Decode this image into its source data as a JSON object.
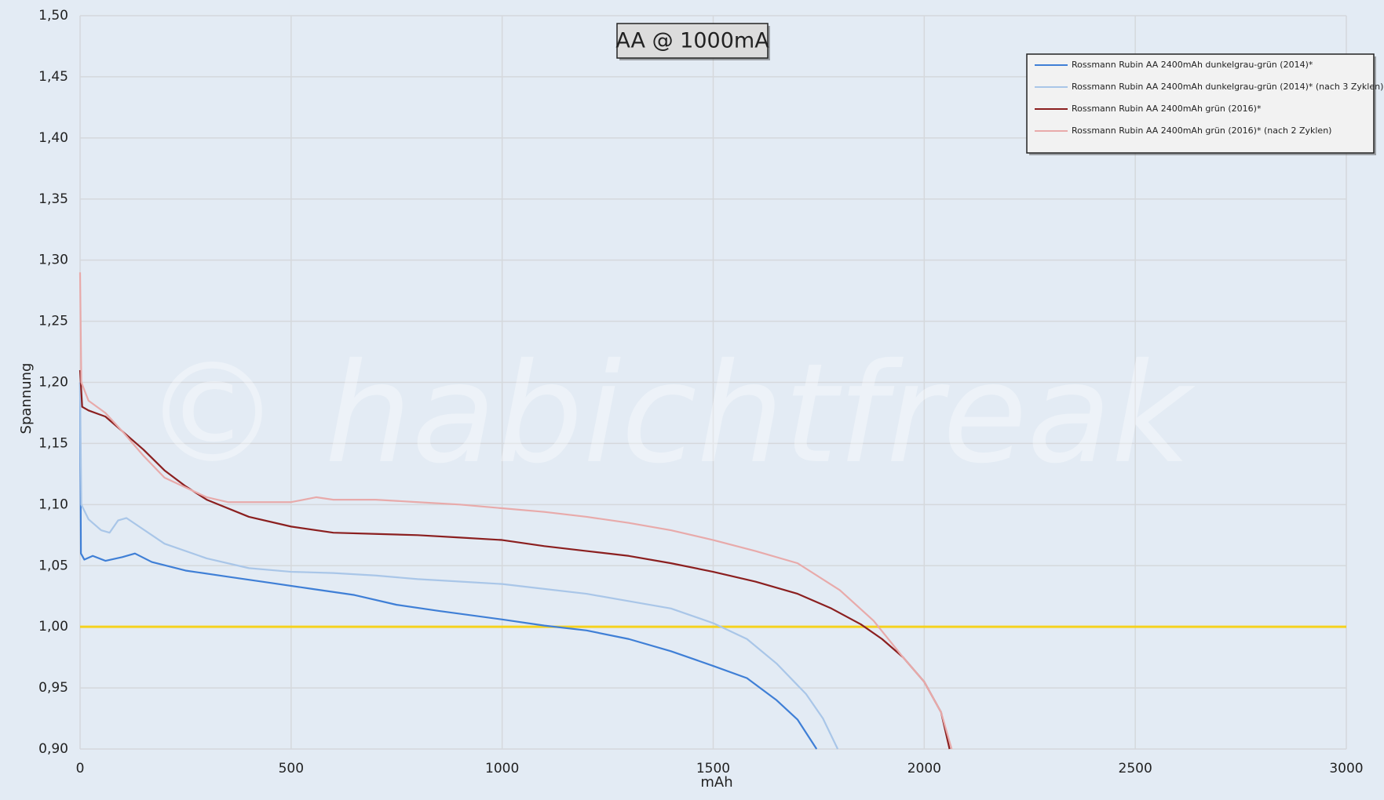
{
  "chart_data": {
    "type": "line",
    "title": "AA @ 1000mA",
    "xlabel": "mAh",
    "ylabel": "Spannung",
    "watermark": "© habichtfreak",
    "xlim": [
      0,
      3000
    ],
    "xticks": [
      0,
      500,
      1000,
      1500,
      2000,
      2500,
      3000
    ],
    "ylim": [
      0.9,
      1.5
    ],
    "yticks": [
      {
        "value": 0.9,
        "label": "0,90"
      },
      {
        "value": 0.95,
        "label": "0,95"
      },
      {
        "value": 1.0,
        "label": "1,00"
      },
      {
        "value": 1.05,
        "label": "1,05"
      },
      {
        "value": 1.1,
        "label": "1,10"
      },
      {
        "value": 1.15,
        "label": "1,15"
      },
      {
        "value": 1.2,
        "label": "1,20"
      },
      {
        "value": 1.25,
        "label": "1,25"
      },
      {
        "value": 1.3,
        "label": "1,30"
      },
      {
        "value": 1.35,
        "label": "1,35"
      },
      {
        "value": 1.4,
        "label": "1,40"
      },
      {
        "value": 1.45,
        "label": "1,45"
      },
      {
        "value": 1.5,
        "label": "1,50"
      }
    ],
    "grid": true,
    "legend": "upper right",
    "reference_line": {
      "value": 1.0,
      "color": "#f5d21e"
    },
    "series": [
      {
        "name": "Rossmann Rubin AA 2400mAh dunkelgrau-grün (2014)*",
        "color": "#3f7fd6",
        "x": [
          0,
          2,
          10,
          30,
          60,
          100,
          130,
          170,
          250,
          350,
          450,
          550,
          650,
          750,
          850,
          1000,
          1100,
          1200,
          1300,
          1400,
          1500,
          1580,
          1650,
          1700,
          1745
        ],
        "values": [
          1.2,
          1.06,
          1.055,
          1.058,
          1.054,
          1.057,
          1.06,
          1.053,
          1.046,
          1.041,
          1.036,
          1.031,
          1.026,
          1.018,
          1.013,
          1.006,
          1.001,
          0.997,
          0.99,
          0.98,
          0.968,
          0.958,
          0.94,
          0.924,
          0.9
        ]
      },
      {
        "name": "Rossmann Rubin AA 2400mAh dunkelgrau-grün (2014)* (nach 3 Zyklen)",
        "color": "#a9c6e8",
        "x": [
          0,
          3,
          20,
          50,
          70,
          90,
          110,
          140,
          200,
          300,
          400,
          500,
          600,
          700,
          800,
          900,
          1000,
          1100,
          1200,
          1300,
          1400,
          1500,
          1580,
          1650,
          1720,
          1760,
          1795
        ],
        "values": [
          1.2,
          1.1,
          1.088,
          1.079,
          1.077,
          1.087,
          1.089,
          1.082,
          1.068,
          1.056,
          1.048,
          1.045,
          1.044,
          1.042,
          1.039,
          1.037,
          1.035,
          1.031,
          1.027,
          1.021,
          1.015,
          1.003,
          0.99,
          0.97,
          0.945,
          0.925,
          0.9
        ]
      },
      {
        "name": "Rossmann Rubin AA 2400mAh grün (2016)*",
        "color": "#8b1f1f",
        "x": [
          0,
          5,
          20,
          60,
          100,
          150,
          200,
          250,
          300,
          400,
          500,
          600,
          700,
          800,
          900,
          1000,
          1100,
          1200,
          1300,
          1400,
          1500,
          1600,
          1700,
          1780,
          1850,
          1900,
          1950,
          2000,
          2040,
          2060
        ],
        "values": [
          1.21,
          1.18,
          1.177,
          1.172,
          1.16,
          1.145,
          1.128,
          1.115,
          1.104,
          1.09,
          1.082,
          1.077,
          1.076,
          1.075,
          1.073,
          1.071,
          1.066,
          1.062,
          1.058,
          1.052,
          1.045,
          1.037,
          1.027,
          1.015,
          1.002,
          0.99,
          0.975,
          0.955,
          0.93,
          0.9
        ]
      },
      {
        "name": "Rossmann Rubin AA 2400mAh grün (2016)* (nach 2 Zyklen)",
        "color": "#e8aaaa",
        "x": [
          0,
          3,
          20,
          60,
          100,
          150,
          200,
          300,
          350,
          400,
          500,
          560,
          600,
          700,
          800,
          900,
          1000,
          1100,
          1200,
          1300,
          1400,
          1500,
          1600,
          1700,
          1800,
          1880,
          1950,
          2000,
          2040,
          2065
        ],
        "values": [
          1.29,
          1.2,
          1.185,
          1.175,
          1.16,
          1.14,
          1.122,
          1.106,
          1.102,
          1.102,
          1.102,
          1.106,
          1.104,
          1.104,
          1.102,
          1.1,
          1.097,
          1.094,
          1.09,
          1.085,
          1.079,
          1.071,
          1.062,
          1.052,
          1.03,
          1.005,
          0.975,
          0.955,
          0.93,
          0.9
        ]
      }
    ]
  }
}
